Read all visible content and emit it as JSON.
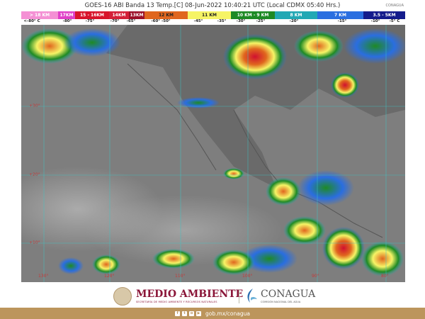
{
  "header": {
    "title": "GOES-16 ABI Banda 13 Temp.[C] 08-Jun-2022 10:40:21 UTC (Local CDMX  05:40 Hrs.)",
    "logo_text": "CONAGUA"
  },
  "legend": {
    "segments": [
      {
        "label": "> 18 KM",
        "color": "#f490d4"
      },
      {
        "label": "17KM",
        "color": "#e040c8"
      },
      {
        "label": "15 - 16KM",
        "color": "#d8142a"
      },
      {
        "label": "14KM",
        "color": "#d42038"
      },
      {
        "label": "13KM",
        "color": "#9c1028"
      },
      {
        "label": "12 KM",
        "color": "#e0661e"
      },
      {
        "label": "11 KM",
        "color": "#f6f466"
      },
      {
        "label": "10 KM - 9 KM",
        "color": "#1e8a24"
      },
      {
        "label": "8 KM",
        "color": "#22a8b4"
      },
      {
        "label": "7 KM",
        "color": "#2a6ee0"
      },
      {
        "label": "3.5 - 5KM",
        "color": "#141c8c"
      }
    ],
    "temperatures": [
      "<-80° C",
      "-80°",
      "-75°",
      "-70°",
      "-65°",
      "-60°  -50°",
      "-45°",
      "-35°",
      "-30°",
      "-25°",
      "-20°",
      "-15°",
      "-10°",
      "-5° C"
    ]
  },
  "map": {
    "latitude_labels": [
      "+30°",
      "+20°",
      "+10°"
    ],
    "longitude_labels": [
      "130°",
      "120°",
      "110°",
      "100°",
      "90°",
      "80°"
    ]
  },
  "footer": {
    "medio_ambiente": "MEDIO AMBIENTE",
    "medio_ambiente_sub": "SECRETARÍA DE MEDIO AMBIENTE Y RECURSOS NATURALES",
    "conagua": "CONAGUA",
    "conagua_sub": "COMISIÓN NACIONAL DEL AGUA",
    "url": "gob.mx/conagua",
    "social_icons": [
      "facebook-icon",
      "twitter-icon",
      "instagram-icon",
      "youtube-icon"
    ]
  }
}
